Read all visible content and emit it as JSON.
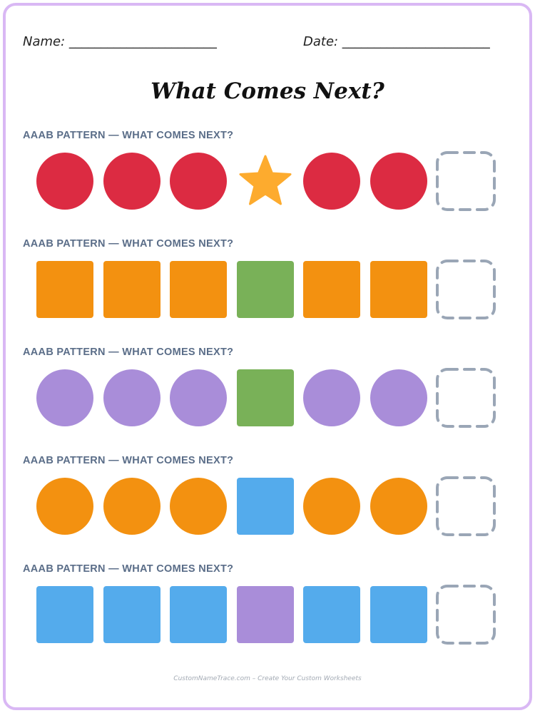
{
  "header": {
    "name_text": "Name: _______________________",
    "date_text": "Date: _______________________"
  },
  "title": "What Comes Next?",
  "rows": [
    {
      "label": "AAAB PATTERN — WHAT COMES NEXT?",
      "items": [
        {
          "shape": "circle",
          "color": "#dc2b42"
        },
        {
          "shape": "circle",
          "color": "#dc2b42"
        },
        {
          "shape": "circle",
          "color": "#dc2b42"
        },
        {
          "shape": "star",
          "color": "#fdab2e"
        },
        {
          "shape": "circle",
          "color": "#dc2b42"
        },
        {
          "shape": "circle",
          "color": "#dc2b42"
        },
        {
          "shape": "blank",
          "color": "#9aa6b6"
        }
      ]
    },
    {
      "label": "AAAB PATTERN — WHAT COMES NEXT?",
      "items": [
        {
          "shape": "square",
          "color": "#f39110"
        },
        {
          "shape": "square",
          "color": "#f39110"
        },
        {
          "shape": "square",
          "color": "#f39110"
        },
        {
          "shape": "square",
          "color": "#79b158"
        },
        {
          "shape": "square",
          "color": "#f39110"
        },
        {
          "shape": "square",
          "color": "#f39110"
        },
        {
          "shape": "blank",
          "color": "#9aa6b6"
        }
      ]
    },
    {
      "label": "AAAB PATTERN — WHAT COMES NEXT?",
      "items": [
        {
          "shape": "circle",
          "color": "#a98dd9"
        },
        {
          "shape": "circle",
          "color": "#a98dd9"
        },
        {
          "shape": "circle",
          "color": "#a98dd9"
        },
        {
          "shape": "square",
          "color": "#79b158"
        },
        {
          "shape": "circle",
          "color": "#a98dd9"
        },
        {
          "shape": "circle",
          "color": "#a98dd9"
        },
        {
          "shape": "blank",
          "color": "#9aa6b6"
        }
      ]
    },
    {
      "label": "AAAB PATTERN — WHAT COMES NEXT?",
      "items": [
        {
          "shape": "circle",
          "color": "#f39110"
        },
        {
          "shape": "circle",
          "color": "#f39110"
        },
        {
          "shape": "circle",
          "color": "#f39110"
        },
        {
          "shape": "square",
          "color": "#54abec"
        },
        {
          "shape": "circle",
          "color": "#f39110"
        },
        {
          "shape": "circle",
          "color": "#f39110"
        },
        {
          "shape": "blank",
          "color": "#9aa6b6"
        }
      ]
    },
    {
      "label": "AAAB PATTERN — WHAT COMES NEXT?",
      "items": [
        {
          "shape": "square",
          "color": "#54abec"
        },
        {
          "shape": "square",
          "color": "#54abec"
        },
        {
          "shape": "square",
          "color": "#54abec"
        },
        {
          "shape": "square",
          "color": "#a98dd9"
        },
        {
          "shape": "square",
          "color": "#54abec"
        },
        {
          "shape": "square",
          "color": "#54abec"
        },
        {
          "shape": "blank",
          "color": "#9aa6b6"
        }
      ]
    }
  ],
  "footer": "CustomNameTrace.com – Create Your Custom Worksheets"
}
